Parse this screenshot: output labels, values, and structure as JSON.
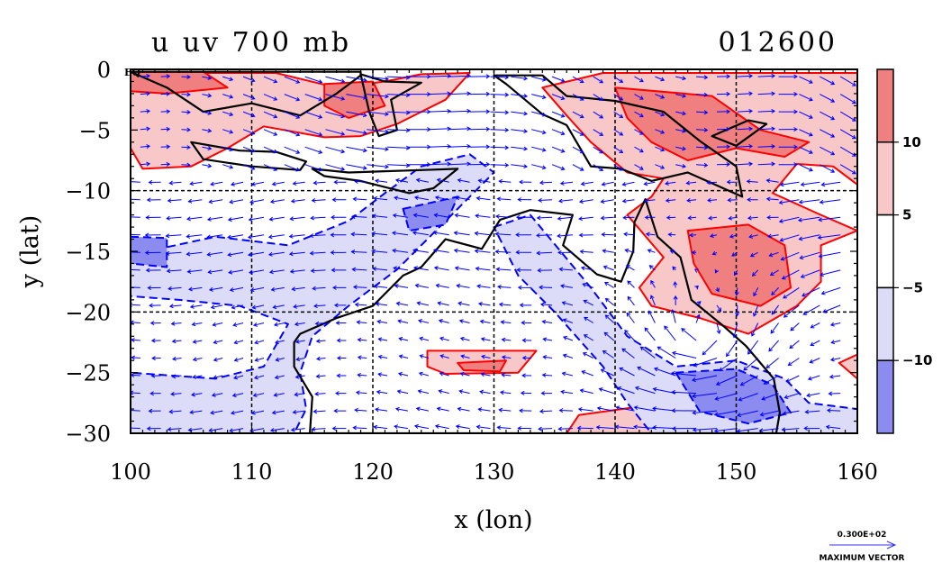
{
  "chart_data": {
    "type": "heatmap",
    "title": "u uv 700 mb",
    "date_label": "012600",
    "xlabel": "x (lon)",
    "ylabel": "y (lat)",
    "xlim": [
      100,
      160
    ],
    "ylim": [
      -30,
      0
    ],
    "x_ticks": [
      "100",
      "110",
      "120",
      "130",
      "140",
      "150",
      "160"
    ],
    "y_ticks": [
      "0",
      "−5",
      "−10",
      "−15",
      "−20",
      "−25",
      "−30"
    ],
    "y_top_suffix": "EQ",
    "grid": true,
    "colorbar": {
      "position": "right",
      "labels": [
        "10",
        "5",
        "−5",
        "−10"
      ],
      "bins": [
        {
          "range": "> 10",
          "color": "#f08080"
        },
        {
          "range": "5 to 10",
          "color": "#f8c8c8"
        },
        {
          "range": "−5 to 5",
          "color": "#ffffff"
        },
        {
          "range": "−10 to −5",
          "color": "#dcdcf8"
        },
        {
          "range": "< −10",
          "color": "#8c8cf0"
        }
      ]
    },
    "contours": {
      "positive_color": "#ff0000",
      "negative_color": "#0000ff",
      "negative_style": "dashed",
      "land_outline_color": "#000000",
      "regions": [
        {
          "level": 5,
          "poly": [
            [
              100,
              -0.3
            ],
            [
              112,
              -0.3
            ],
            [
              117,
              -1.5
            ],
            [
              121,
              -1.0
            ],
            [
              124,
              -0.4
            ],
            [
              128,
              -0.3
            ],
            [
              126,
              -2.5
            ],
            [
              122,
              -4.5
            ],
            [
              119,
              -5.5
            ],
            [
              116,
              -5.6
            ],
            [
              111,
              -4.7
            ],
            [
              108,
              -6.5
            ],
            [
              105,
              -8.0
            ],
            [
              101,
              -8.2
            ],
            [
              100,
              -6.5
            ]
          ]
        },
        {
          "level": 10,
          "poly": [
            [
              100,
              -0.2
            ],
            [
              106,
              -0.2
            ],
            [
              108,
              -1.5
            ],
            [
              103,
              -2.0
            ],
            [
              100,
              -1.8
            ]
          ]
        },
        {
          "level": 10,
          "poly": [
            [
              116,
              -1.2
            ],
            [
              120,
              -1.0
            ],
            [
              121,
              -3.0
            ],
            [
              118,
              -4.0
            ],
            [
              116,
              -3.0
            ]
          ]
        },
        {
          "level": 5,
          "poly": [
            [
              139,
              -0.3
            ],
            [
              160,
              -0.3
            ],
            [
              160,
              -9.5
            ],
            [
              158,
              -8.0
            ],
            [
              155,
              -7.8
            ],
            [
              153,
              -10.2
            ],
            [
              157,
              -12.0
            ],
            [
              160,
              -13.3
            ],
            [
              157,
              -14.5
            ],
            [
              157,
              -17.5
            ],
            [
              155,
              -19.5
            ],
            [
              151,
              -21.8
            ],
            [
              147,
              -20.5
            ],
            [
              143,
              -19.5
            ],
            [
              142,
              -18.0
            ],
            [
              144,
              -15.5
            ],
            [
              141,
              -12.0
            ],
            [
              143,
              -10.5
            ],
            [
              144,
              -9.0
            ],
            [
              141,
              -8.5
            ],
            [
              138,
              -6.0
            ],
            [
              136,
              -3.8
            ],
            [
              134,
              -1.5
            ]
          ]
        },
        {
          "level": 10,
          "poly": [
            [
              140,
              -1.5
            ],
            [
              148,
              -2.2
            ],
            [
              152,
              -5.0
            ],
            [
              156,
              -6.0
            ],
            [
              154,
              -7.2
            ],
            [
              150,
              -6.5
            ],
            [
              146,
              -7.5
            ],
            [
              143,
              -6.0
            ],
            [
              141,
              -4.0
            ]
          ]
        },
        {
          "level": 10,
          "poly": [
            [
              146,
              -13.3
            ],
            [
              151,
              -12.8
            ],
            [
              154,
              -14.5
            ],
            [
              154.5,
              -18.0
            ],
            [
              152,
              -19.5
            ],
            [
              148,
              -18.5
            ],
            [
              146.5,
              -16.0
            ]
          ]
        },
        {
          "level": 5,
          "poly": [
            [
              124.5,
              -23.2
            ],
            [
              133.5,
              -23.2
            ],
            [
              132.0,
              -25.0
            ],
            [
              126,
              -25.1
            ],
            [
              124.5,
              -24.5
            ]
          ]
        },
        {
          "level": 10,
          "poly": [
            [
              127,
              -24.2
            ],
            [
              131,
              -24.0
            ],
            [
              130.5,
              -24.9
            ],
            [
              127.5,
              -24.8
            ]
          ]
        },
        {
          "level": 5,
          "poly": [
            [
              137,
              -28.5
            ],
            [
              142,
              -27.8
            ],
            [
              143,
              -30
            ],
            [
              136,
              -30
            ]
          ]
        },
        {
          "level": 5,
          "poly": [
            [
              158.5,
              -24.2
            ],
            [
              160,
              -23.5
            ],
            [
              160,
              -25.5
            ]
          ]
        },
        {
          "level": -5,
          "poly": [
            [
              100,
              -15.3
            ],
            [
              107,
              -13.8
            ],
            [
              113,
              -14.5
            ],
            [
              118,
              -12.5
            ],
            [
              121,
              -10.2
            ],
            [
              124,
              -8.0
            ],
            [
              128,
              -7.0
            ],
            [
              130,
              -8.5
            ],
            [
              128,
              -10.5
            ],
            [
              125,
              -13.5
            ],
            [
              122,
              -16.5
            ],
            [
              118,
              -19.5
            ],
            [
              115,
              -22.0
            ],
            [
              114,
              -25.0
            ],
            [
              114.5,
              -28.0
            ],
            [
              113.5,
              -30
            ],
            [
              100,
              -30
            ],
            [
              100,
              -25.0
            ],
            [
              107,
              -25.5
            ],
            [
              111,
              -24.5
            ],
            [
              113,
              -21.0
            ],
            [
              109,
              -19.5
            ],
            [
              104,
              -19.0
            ],
            [
              100,
              -18.7
            ]
          ]
        },
        {
          "level": -5,
          "poly": [
            [
              130,
              -13.0
            ],
            [
              133,
              -12.0
            ],
            [
              138,
              -18.0
            ],
            [
              141,
              -22.0
            ],
            [
              145,
              -24.5
            ],
            [
              150,
              -24.0
            ],
            [
              154,
              -25.5
            ],
            [
              156,
              -27.5
            ],
            [
              160,
              -28.0
            ],
            [
              160,
              -30
            ],
            [
              143,
              -30
            ],
            [
              141,
              -27.5
            ],
            [
              139,
              -24.5
            ],
            [
              135,
              -20.0
            ],
            [
              132,
              -17.0
            ]
          ]
        },
        {
          "level": -10,
          "poly": [
            [
              145,
              -25.0
            ],
            [
              150,
              -24.7
            ],
            [
              153,
              -26.0
            ],
            [
              154.5,
              -28.3
            ],
            [
              151,
              -29.2
            ],
            [
              147,
              -28.2
            ]
          ]
        },
        {
          "level": -10,
          "poly": [
            [
              100,
              -13.8
            ],
            [
              103,
              -13.9
            ],
            [
              103,
              -16.3
            ],
            [
              100,
              -16.0
            ]
          ]
        },
        {
          "level": -10,
          "poly": [
            [
              122.5,
              -11.5
            ],
            [
              127,
              -10.5
            ],
            [
              126,
              -12.8
            ],
            [
              123,
              -13.3
            ]
          ]
        }
      ]
    },
    "coastlines": [
      {
        "name": "Sumatra/Borneo",
        "poly": [
          [
            100,
            -0.2
          ],
          [
            103,
            -1.5
          ],
          [
            106,
            -3.5
          ],
          [
            110,
            -2.8
          ],
          [
            114,
            -3.8
          ],
          [
            117,
            -2.0
          ],
          [
            119,
            -0.5
          ],
          [
            119,
            -0.2
          ]
        ]
      },
      {
        "name": "Java",
        "poly": [
          [
            105,
            -6.0
          ],
          [
            109,
            -6.7
          ],
          [
            112,
            -6.8
          ],
          [
            114.5,
            -7.6
          ],
          [
            114,
            -8.3
          ],
          [
            110,
            -8.0
          ],
          [
            106,
            -7.4
          ]
        ]
      },
      {
        "name": "Lesser Sundas",
        "poly": [
          [
            115,
            -8.2
          ],
          [
            118,
            -8.5
          ],
          [
            121,
            -8.4
          ],
          [
            124,
            -8.3
          ],
          [
            127,
            -8.2
          ],
          [
            125,
            -9.8
          ],
          [
            123,
            -10.2
          ],
          [
            119,
            -9.2
          ],
          [
            116,
            -8.8
          ]
        ]
      },
      {
        "name": "Sulawesi",
        "poly": [
          [
            119,
            -0.4
          ],
          [
            121,
            -1.0
          ],
          [
            124,
            -1.1
          ],
          [
            121.5,
            -2.5
          ],
          [
            122,
            -5.0
          ],
          [
            120.5,
            -5.5
          ],
          [
            119.7,
            -3.5
          ]
        ]
      },
      {
        "name": "New Guinea",
        "poly": [
          [
            130,
            -0.5
          ],
          [
            134,
            -0.5
          ],
          [
            136,
            -2.2
          ],
          [
            140,
            -2.6
          ],
          [
            144,
            -3.5
          ],
          [
            147,
            -5.9
          ],
          [
            150,
            -8.0
          ],
          [
            150.5,
            -10.5
          ],
          [
            146,
            -8.5
          ],
          [
            143,
            -9.2
          ],
          [
            140.5,
            -8.2
          ],
          [
            138,
            -8.0
          ],
          [
            136,
            -4.6
          ],
          [
            134,
            -3.7
          ],
          [
            131,
            -1.2
          ]
        ]
      },
      {
        "name": "New Britain",
        "poly": [
          [
            148,
            -5.5
          ],
          [
            151,
            -4.2
          ],
          [
            152.5,
            -4.5
          ],
          [
            150,
            -6.3
          ]
        ]
      },
      {
        "name": "Australia",
        "poly": [
          [
            113.5,
            -22.5
          ],
          [
            114,
            -21.8
          ],
          [
            117,
            -20.5
          ],
          [
            120,
            -19.5
          ],
          [
            122.5,
            -17.0
          ],
          [
            124,
            -16.3
          ],
          [
            126,
            -14.0
          ],
          [
            129,
            -14.8
          ],
          [
            130.5,
            -12.4
          ],
          [
            133,
            -11.6
          ],
          [
            136.5,
            -12.0
          ],
          [
            135.7,
            -14.5
          ],
          [
            138.5,
            -16.9
          ],
          [
            140.5,
            -17.5
          ],
          [
            141.5,
            -15.0
          ],
          [
            141.6,
            -12.6
          ],
          [
            142.5,
            -10.7
          ],
          [
            143.5,
            -13.8
          ],
          [
            145.4,
            -15.5
          ],
          [
            146.3,
            -19.0
          ],
          [
            149.0,
            -21.2
          ],
          [
            150.8,
            -22.8
          ],
          [
            153.1,
            -25.5
          ],
          [
            153.6,
            -28.3
          ],
          [
            153.3,
            -30
          ],
          [
            114.8,
            -30
          ],
          [
            115,
            -27.0
          ],
          [
            113.5,
            -24.5
          ]
        ]
      }
    ],
    "wind_vectors": {
      "color": "#0000ff",
      "reference_vector_value": "0.300E+02",
      "reference_vector_label": "MAXIMUM VECTOR",
      "regimes": [
        {
          "area": "north 0 to -9",
          "u_dir": "westerly",
          "speed_ms": 12
        },
        {
          "area": "central -10 to -25",
          "u_dir": "easterly",
          "speed_ms": 8
        },
        {
          "area": "east Australia",
          "u_dir": "cyclonic",
          "speed_ms": 15
        }
      ]
    }
  }
}
